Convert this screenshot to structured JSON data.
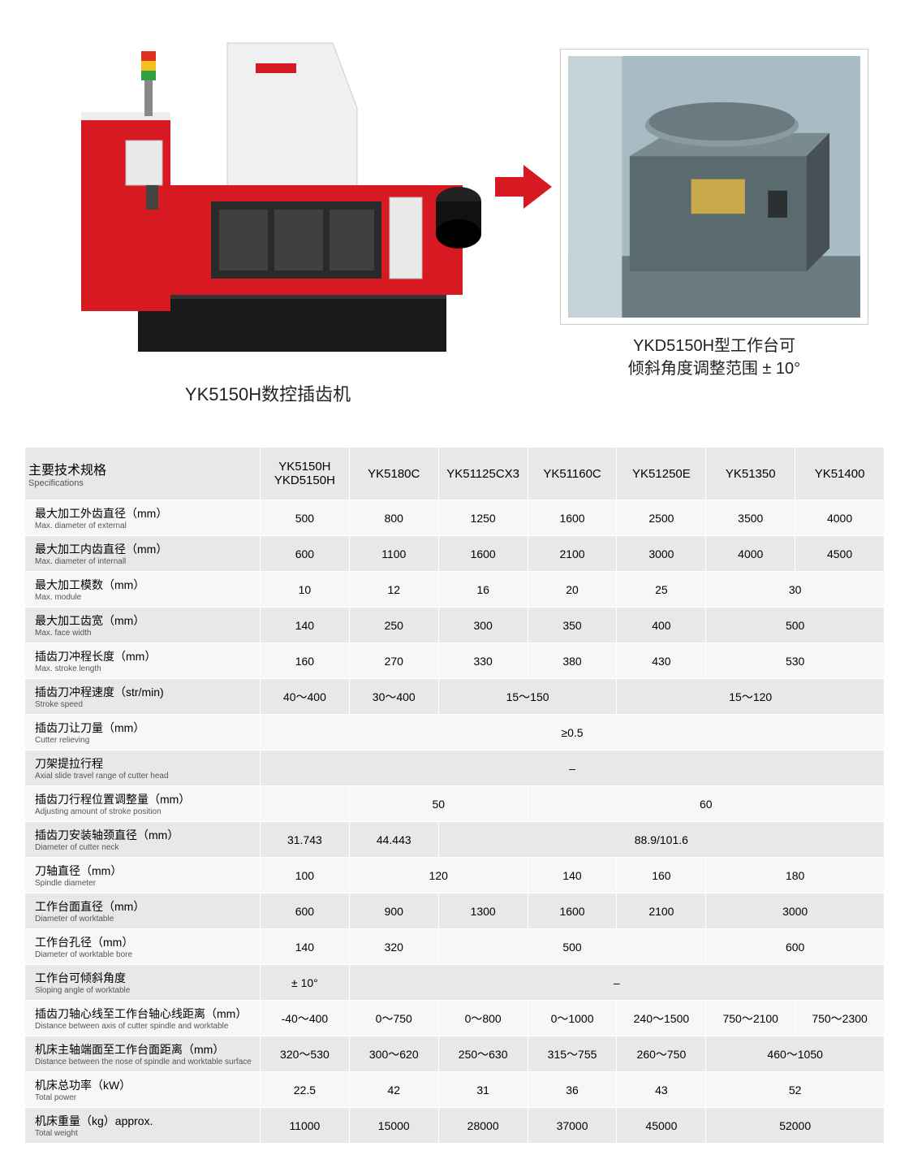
{
  "top": {
    "main_caption": "YK5150H数控插齿机",
    "detail_caption_line1": "YKD5150H型工作台可",
    "detail_caption_line2": "倾斜角度调整范围 ± 10°"
  },
  "colors": {
    "machine_red": "#d71a21",
    "machine_white": "#f5f5f5",
    "machine_black": "#1a1a1a",
    "arrow": "#d71a21",
    "detail_bg": "#7a9aa8",
    "detail_box": "#5a6b6f",
    "header_bg": "#e8e8e8",
    "row_alt": "#f7f7f7"
  },
  "spec_header": {
    "label_cn": "主要技术规格",
    "label_en": "Specifications",
    "models": [
      "YK5150H\nYKD5150H",
      "YK5180C",
      "YK51125CX3",
      "YK51160C",
      "YK51250E",
      "YK51350",
      "YK51400"
    ]
  },
  "rows": [
    {
      "cn": "最大加工外齿直径（mm）",
      "en": "Max. diameter of external",
      "cells": [
        "500",
        "800",
        "1250",
        "1600",
        "2500",
        "3500",
        "4000"
      ]
    },
    {
      "cn": "最大加工内齿直径（mm）",
      "en": "Max. diameter of internall",
      "cells": [
        "600",
        "1100",
        "1600",
        "2100",
        "3000",
        "4000",
        "4500"
      ]
    },
    {
      "cn": "最大加工模数（mm）",
      "en": "Max. module",
      "cells": [
        "10",
        "12",
        "16",
        "20",
        "25",
        {
          "span": 2,
          "v": "30"
        }
      ]
    },
    {
      "cn": "最大加工齿宽（mm）",
      "en": "Max. face width",
      "cells": [
        "140",
        "250",
        "300",
        "350",
        "400",
        {
          "span": 2,
          "v": "500"
        }
      ]
    },
    {
      "cn": "插齿刀冲程长度（mm）",
      "en": "Max. stroke length",
      "cells": [
        "160",
        "270",
        "330",
        "380",
        "430",
        {
          "span": 2,
          "v": "530"
        }
      ]
    },
    {
      "cn": "插齿刀冲程速度（str/min)",
      "en": "Stroke speed",
      "cells": [
        "40～400",
        "30～400",
        {
          "span": 2,
          "v": "15～150"
        },
        {
          "span": 3,
          "v": "15～120"
        }
      ]
    },
    {
      "cn": "插齿刀让刀量（mm）",
      "en": "Cutter relieving",
      "cells": [
        {
          "span": 7,
          "v": "≥0.5"
        }
      ]
    },
    {
      "cn": "刀架提拉行程",
      "en": "Axial slide travel range of cutter head",
      "cells": [
        {
          "span": 7,
          "v": "–"
        }
      ]
    },
    {
      "cn": "插齿刀行程位置调整量（mm）",
      "en": "Adjusting amount of stroke position",
      "cells": [
        "",
        {
          "span": 2,
          "v": "50"
        },
        {
          "span": 4,
          "v": "60"
        }
      ]
    },
    {
      "cn": "插齿刀安装轴颈直径（mm）",
      "en": "Diameter of cutter neck",
      "cells": [
        "31.743",
        "44.443",
        {
          "span": 5,
          "v": "88.9/101.6"
        }
      ]
    },
    {
      "cn": "刀轴直径（mm）",
      "en": "Spindle diameter",
      "cells": [
        "100",
        {
          "span": 2,
          "v": "120"
        },
        "140",
        "160",
        {
          "span": 2,
          "v": "180"
        }
      ]
    },
    {
      "cn": "工作台面直径（mm）",
      "en": "Diameter of worktable",
      "cells": [
        "600",
        "900",
        "1300",
        "1600",
        "2100",
        {
          "span": 2,
          "v": "3000"
        }
      ]
    },
    {
      "cn": "工作台孔径（mm）",
      "en": "Diameter of worktable bore",
      "cells": [
        "140",
        "320",
        {
          "span": 3,
          "v": "500"
        },
        {
          "span": 2,
          "v": "600"
        }
      ]
    },
    {
      "cn": "工作台可倾斜角度",
      "en": "Sloping angle of worktable",
      "cells": [
        "± 10°",
        {
          "span": 6,
          "v": "–"
        }
      ]
    },
    {
      "cn": "插齿刀轴心线至工作台轴心线距离（mm）",
      "en": "Distance between axis of cutter spindle and worktable",
      "cells": [
        "-40～400",
        "0～750",
        "0～800",
        "0～1000",
        "240～1500",
        "750～2100",
        "750～2300"
      ]
    },
    {
      "cn": "机床主轴端面至工作台面距离（mm）",
      "en": "Distance between the nose of spindle and worktable surface",
      "cells": [
        "320～530",
        "300～620",
        "250～630",
        "315～755",
        "260～750",
        {
          "span": 2,
          "v": "460～1050"
        }
      ]
    },
    {
      "cn": "机床总功率（kW）",
      "en": "Total power",
      "cells": [
        "22.5",
        "42",
        "31",
        "36",
        "43",
        {
          "span": 2,
          "v": "52"
        }
      ]
    },
    {
      "cn": "机床重量（kg）approx.",
      "en": "Total weight",
      "cells": [
        "11000",
        "15000",
        "28000",
        "37000",
        "45000",
        {
          "span": 2,
          "v": "52000"
        }
      ]
    }
  ]
}
